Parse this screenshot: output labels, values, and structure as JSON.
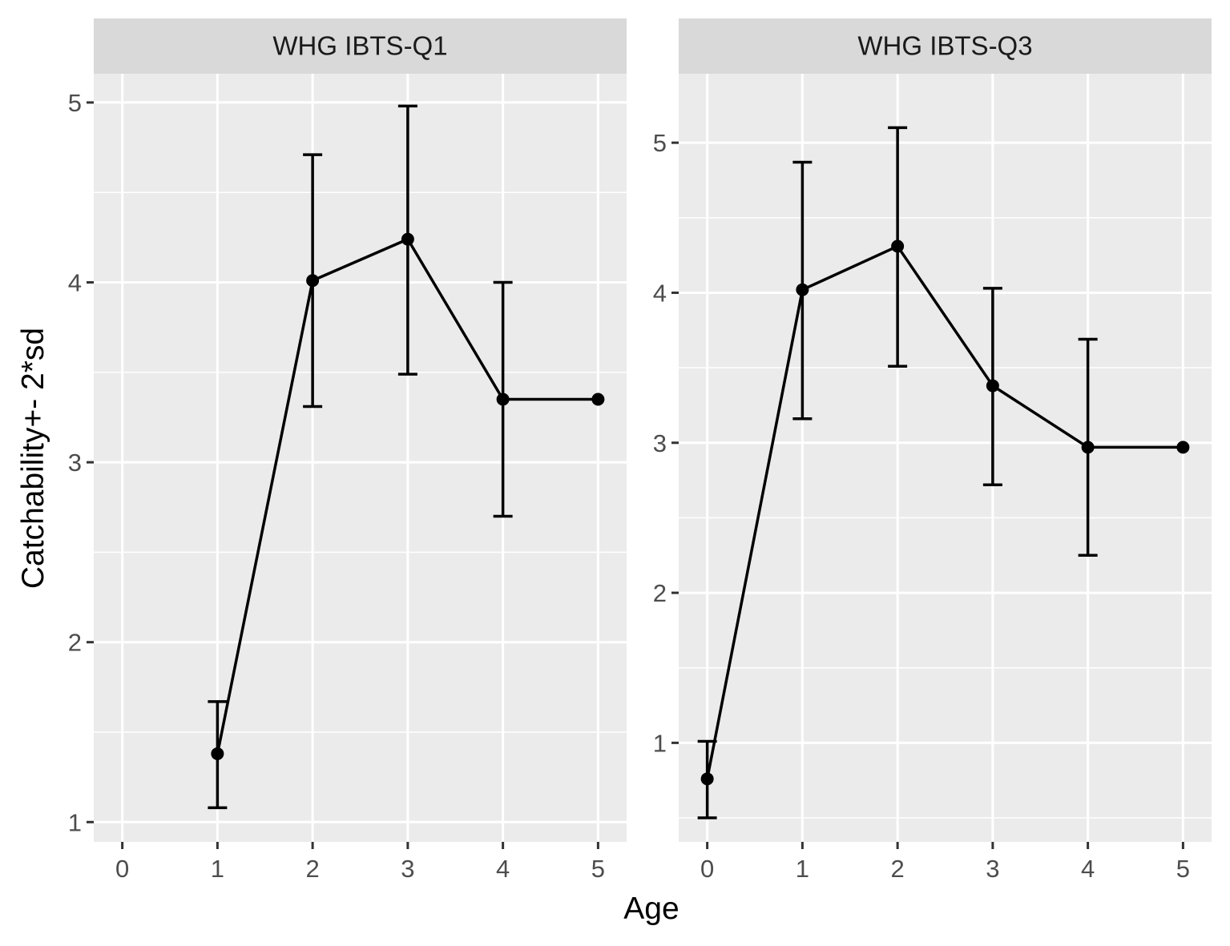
{
  "chart_data": {
    "type": "line",
    "xlabel": "Age",
    "ylabel": "Catchability+- 2*sd",
    "panels": [
      {
        "title": "WHG IBTS-Q1",
        "xlim": [
          0,
          5
        ],
        "ylim": [
          0.89,
          5.16
        ],
        "xticks": [
          0,
          1,
          2,
          3,
          4,
          5
        ],
        "yticks": [
          1,
          2,
          3,
          4,
          5
        ],
        "ygrid_minor": [
          1.5,
          2.5,
          3.5,
          4.5
        ],
        "x": [
          1,
          2,
          3,
          4,
          5
        ],
        "y": [
          1.38,
          4.01,
          4.24,
          3.35,
          3.35
        ],
        "ymin": [
          1.08,
          3.31,
          3.49,
          2.7,
          null
        ],
        "ymax": [
          1.67,
          4.71,
          4.98,
          4.0,
          null
        ]
      },
      {
        "title": "WHG IBTS-Q3",
        "xlim": [
          0,
          5
        ],
        "ylim": [
          0.34,
          5.46
        ],
        "xticks": [
          0,
          1,
          2,
          3,
          4,
          5
        ],
        "yticks": [
          1,
          2,
          3,
          4,
          5
        ],
        "ygrid_minor": [
          0.5,
          1.5,
          2.5,
          3.5,
          4.5
        ],
        "x": [
          0,
          1,
          2,
          3,
          4,
          5
        ],
        "y": [
          0.76,
          4.02,
          4.31,
          3.38,
          2.97,
          2.97
        ],
        "ymin": [
          0.5,
          3.16,
          3.51,
          2.72,
          2.25,
          null
        ],
        "ymax": [
          1.01,
          4.87,
          5.1,
          4.03,
          3.69,
          null
        ]
      }
    ]
  }
}
